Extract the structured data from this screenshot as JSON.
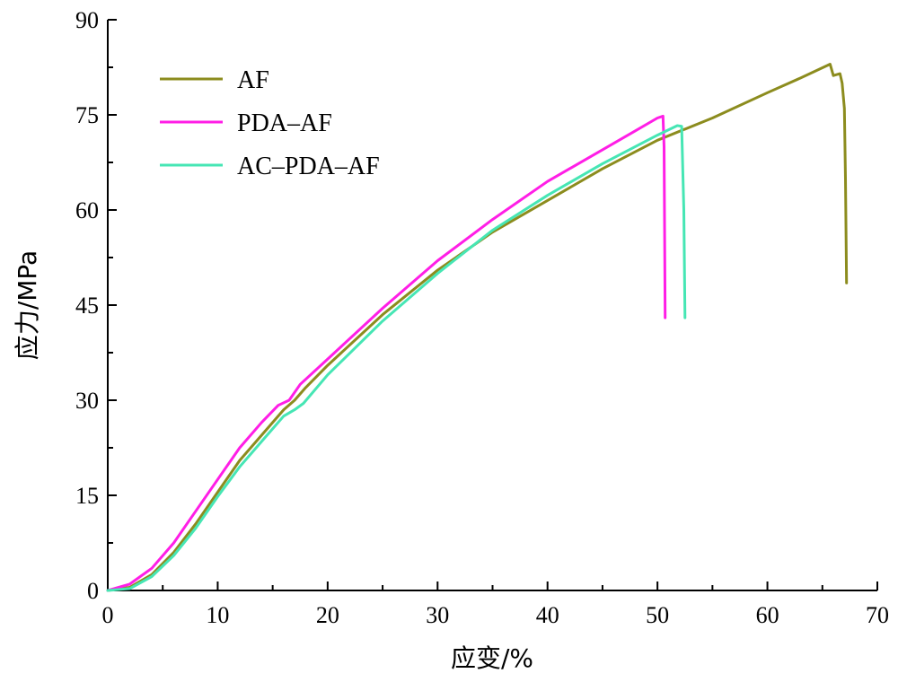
{
  "chart_data": {
    "type": "line",
    "title": "",
    "xlabel": "应变/%",
    "ylabel": "应力/MPa",
    "xlim": [
      0,
      70
    ],
    "ylim": [
      0,
      90
    ],
    "x_ticks": [
      0,
      10,
      20,
      30,
      40,
      50,
      60,
      70
    ],
    "y_ticks": [
      0,
      15,
      30,
      45,
      60,
      75,
      90
    ],
    "x_tick_labels": [
      "0",
      "10",
      "20",
      "30",
      "40",
      "50",
      "60",
      "70"
    ],
    "y_tick_labels": [
      "0",
      "15",
      "30",
      "45",
      "60",
      "75",
      "90"
    ],
    "grid": false,
    "legend_position": "top-left",
    "series": [
      {
        "name": "AF",
        "color": "#8c8c1e",
        "points": [
          [
            0,
            0
          ],
          [
            2,
            0.5
          ],
          [
            4,
            2.5
          ],
          [
            6,
            6
          ],
          [
            8,
            10.5
          ],
          [
            10,
            15.5
          ],
          [
            12,
            20.5
          ],
          [
            14,
            24.5
          ],
          [
            16,
            28.5
          ],
          [
            17,
            30
          ],
          [
            18,
            32
          ],
          [
            20,
            35.5
          ],
          [
            25,
            43.5
          ],
          [
            30,
            50.5
          ],
          [
            35,
            56.5
          ],
          [
            40,
            61.5
          ],
          [
            45,
            66.5
          ],
          [
            50,
            71
          ],
          [
            55,
            74.5
          ],
          [
            60,
            78.5
          ],
          [
            63,
            80.8
          ],
          [
            65.7,
            83
          ],
          [
            66.0,
            81.2
          ],
          [
            66.6,
            81.5
          ],
          [
            66.8,
            80
          ],
          [
            67.0,
            76
          ],
          [
            67.1,
            65
          ],
          [
            67.2,
            48.5
          ]
        ]
      },
      {
        "name": "PDA–AF",
        "color": "#ff1ee6",
        "points": [
          [
            0,
            0
          ],
          [
            2,
            1
          ],
          [
            4,
            3.5
          ],
          [
            6,
            7.5
          ],
          [
            8,
            12.5
          ],
          [
            10,
            17.5
          ],
          [
            12,
            22.5
          ],
          [
            14,
            26.5
          ],
          [
            15.5,
            29.2
          ],
          [
            16.5,
            30
          ],
          [
            17.5,
            32.5
          ],
          [
            20,
            36.5
          ],
          [
            25,
            44.5
          ],
          [
            30,
            52
          ],
          [
            35,
            58.5
          ],
          [
            40,
            64.5
          ],
          [
            45,
            69.5
          ],
          [
            48,
            72.5
          ],
          [
            50,
            74.5
          ],
          [
            50.5,
            74.8
          ],
          [
            50.6,
            70
          ],
          [
            50.7,
            43
          ]
        ]
      },
      {
        "name": "AC–PDA–AF",
        "color": "#46e6b4",
        "points": [
          [
            0,
            0
          ],
          [
            2,
            0.3
          ],
          [
            4,
            2.2
          ],
          [
            6,
            5.5
          ],
          [
            8,
            9.8
          ],
          [
            10,
            14.8
          ],
          [
            12,
            19.5
          ],
          [
            14,
            23.5
          ],
          [
            16,
            27.5
          ],
          [
            17,
            28.5
          ],
          [
            17.8,
            29.5
          ],
          [
            20,
            34
          ],
          [
            25,
            42.5
          ],
          [
            30,
            50
          ],
          [
            35,
            56.8
          ],
          [
            40,
            62.3
          ],
          [
            45,
            67.3
          ],
          [
            50,
            71.8
          ],
          [
            51.8,
            73.3
          ],
          [
            52.2,
            73.2
          ],
          [
            52.4,
            60
          ],
          [
            52.5,
            43
          ]
        ]
      }
    ]
  }
}
